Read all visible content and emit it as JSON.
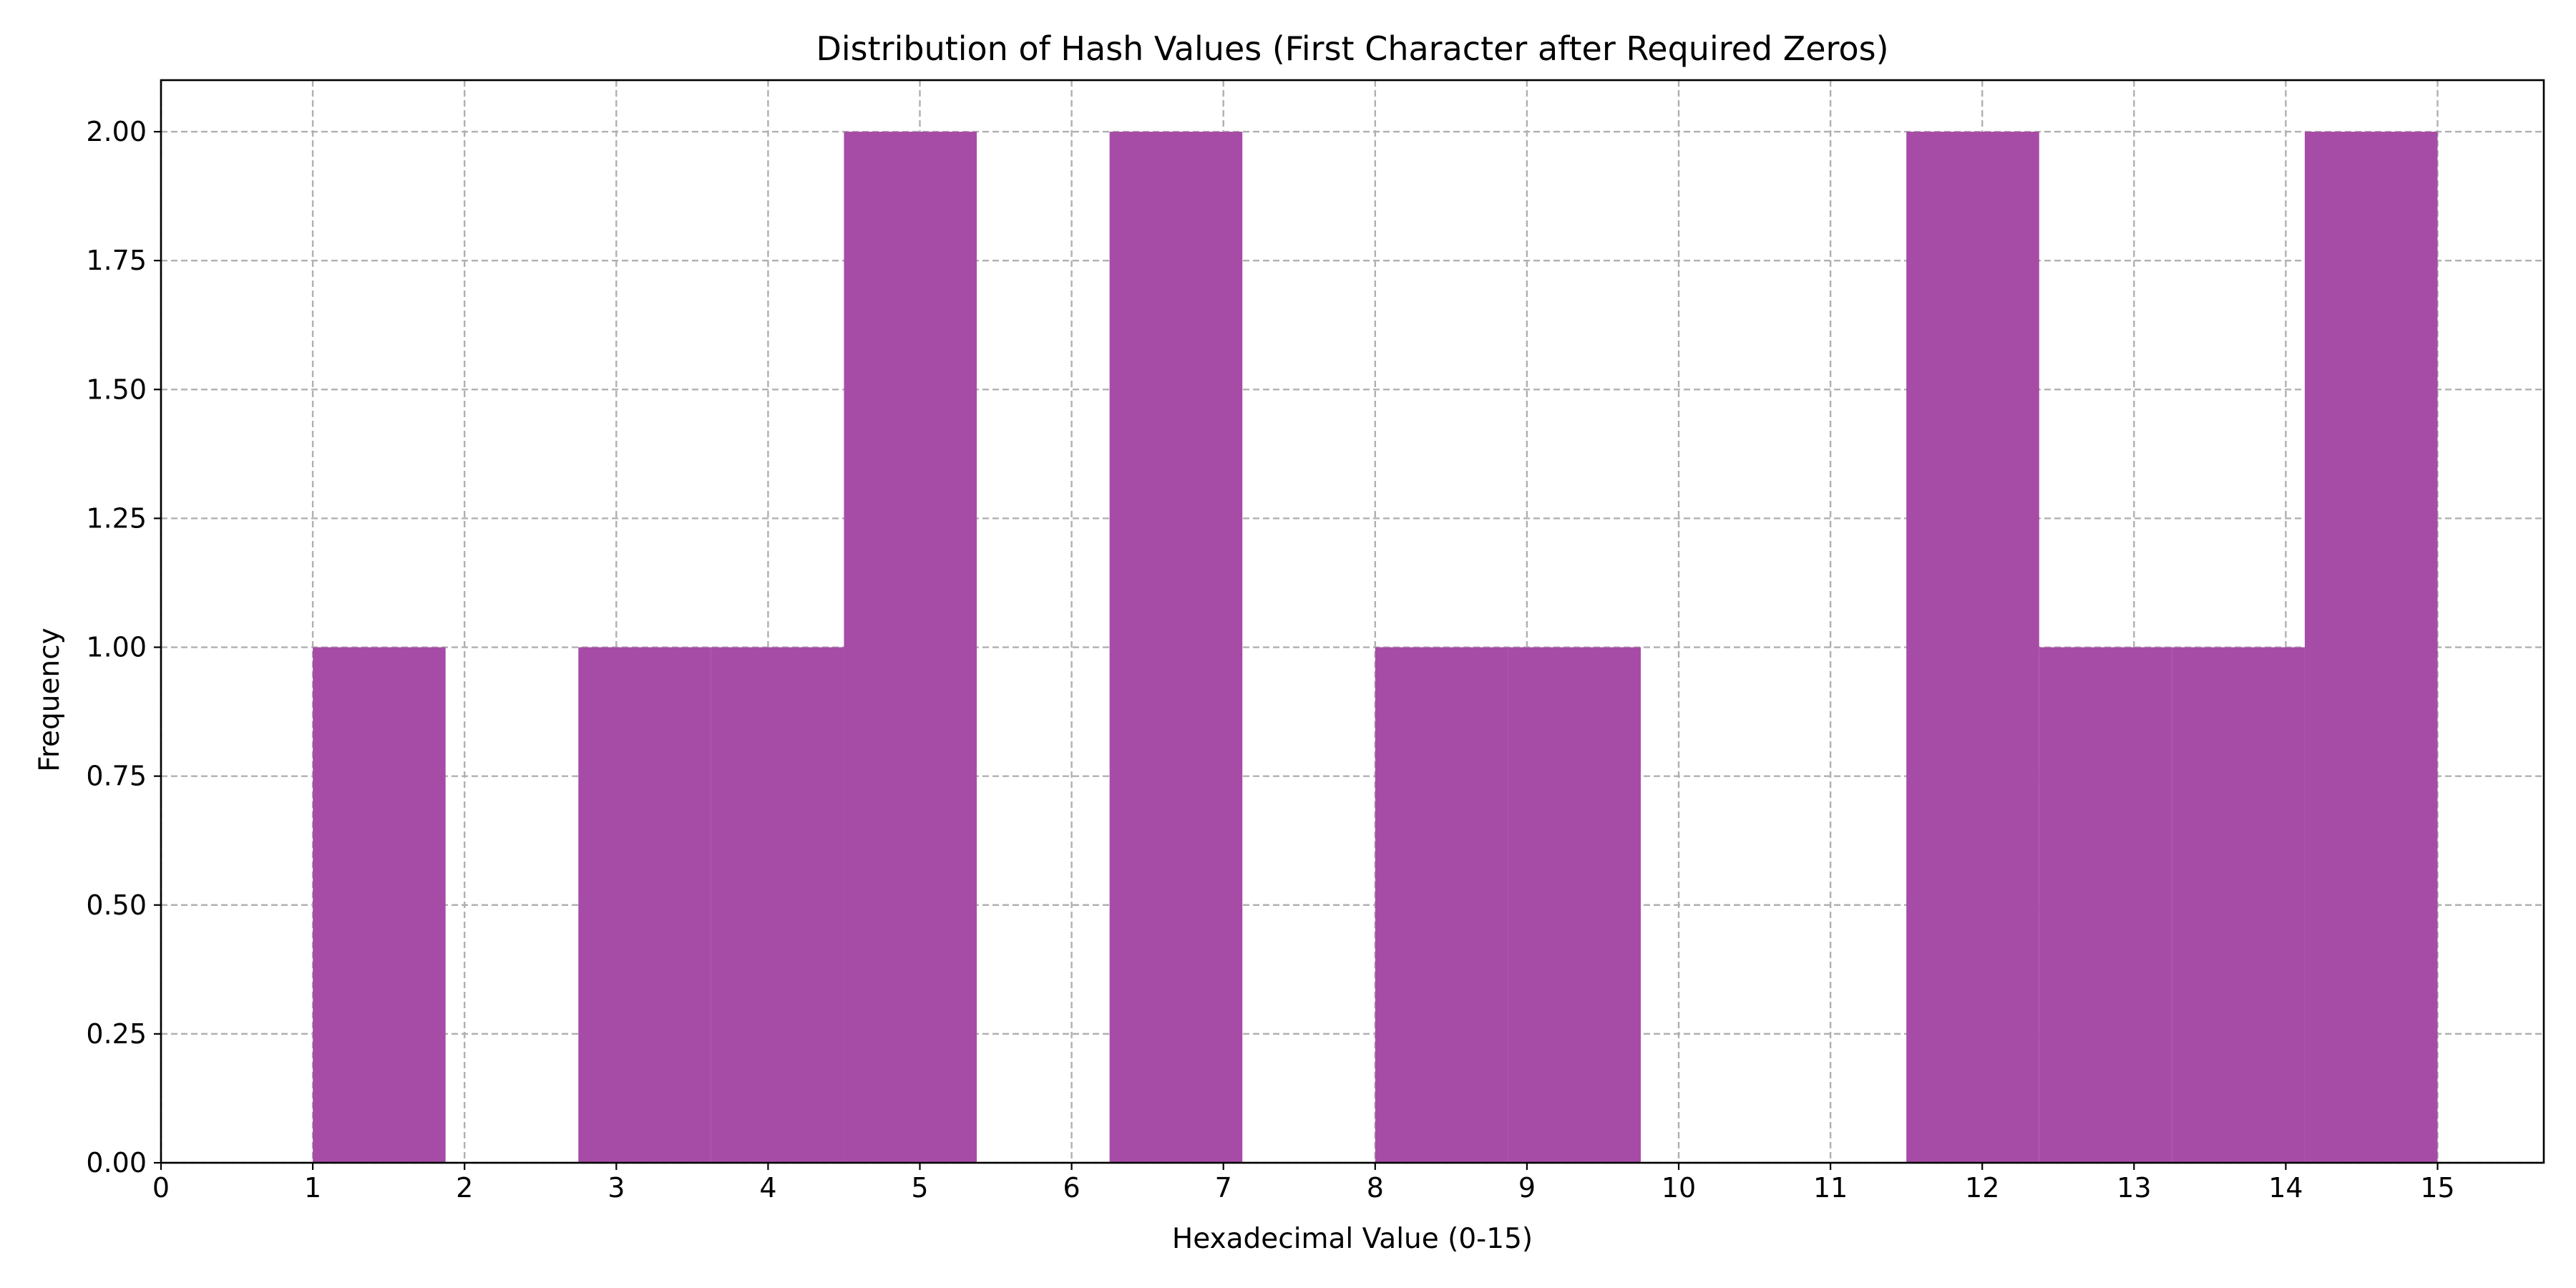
{
  "chart_data": {
    "type": "bar",
    "title": "Distribution of Hash Values (First Character after Required Zeros)",
    "xlabel": "Hexadecimal Value (0-15)",
    "ylabel": "Frequency",
    "xlim": [
      0,
      15.7
    ],
    "ylim": [
      0,
      2.1
    ],
    "xticks": [
      0,
      1,
      2,
      3,
      4,
      5,
      6,
      7,
      8,
      9,
      10,
      11,
      12,
      13,
      14,
      15
    ],
    "xtick_labels": [
      "0",
      "1",
      "2",
      "3",
      "4",
      "5",
      "6",
      "7",
      "8",
      "9",
      "10",
      "11",
      "12",
      "13",
      "14",
      "15"
    ],
    "yticks": [
      0,
      0.25,
      0.5,
      0.75,
      1.0,
      1.25,
      1.5,
      1.75,
      2.0
    ],
    "ytick_labels": [
      "0.00",
      "0.25",
      "0.50",
      "0.75",
      "1.00",
      "1.25",
      "1.50",
      "1.75",
      "2.00"
    ],
    "grid": true,
    "bar_color": "#a64ca6",
    "bins": [
      {
        "x0": 1.0,
        "x1": 1.875,
        "count": 1
      },
      {
        "x0": 1.875,
        "x1": 2.75,
        "count": 0
      },
      {
        "x0": 2.75,
        "x1": 3.625,
        "count": 1
      },
      {
        "x0": 3.625,
        "x1": 4.5,
        "count": 1
      },
      {
        "x0": 4.5,
        "x1": 5.375,
        "count": 2
      },
      {
        "x0": 5.375,
        "x1": 6.25,
        "count": 0
      },
      {
        "x0": 6.25,
        "x1": 7.125,
        "count": 2
      },
      {
        "x0": 7.125,
        "x1": 8.0,
        "count": 0
      },
      {
        "x0": 8.0,
        "x1": 8.875,
        "count": 1
      },
      {
        "x0": 8.875,
        "x1": 9.75,
        "count": 1
      },
      {
        "x0": 9.75,
        "x1": 10.625,
        "count": 0
      },
      {
        "x0": 10.625,
        "x1": 11.5,
        "count": 0
      },
      {
        "x0": 11.5,
        "x1": 12.375,
        "count": 2
      },
      {
        "x0": 12.375,
        "x1": 13.25,
        "count": 1
      },
      {
        "x0": 13.25,
        "x1": 14.125,
        "count": 1
      },
      {
        "x0": 14.125,
        "x1": 15.0,
        "count": 2
      }
    ]
  }
}
